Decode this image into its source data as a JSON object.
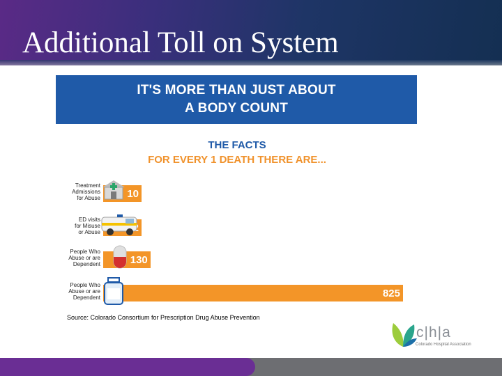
{
  "slide": {
    "title": "Additional Toll on System"
  },
  "infographic": {
    "banner_lines": [
      "IT'S MORE THAN JUST ABOUT",
      "A BODY COUNT"
    ],
    "facts_lines": [
      "THE FACTS",
      "FOR EVERY 1 DEATH THERE ARE..."
    ],
    "source": "Source: Colorado Consortium for Prescription Drug Abuse Prevention",
    "colors": {
      "banner": "#1f5aa8",
      "bar": "#f39528",
      "facts_accent": "#f0922c"
    }
  },
  "chart_data": {
    "type": "bar",
    "orientation": "horizontal",
    "categories": [
      [
        "Treatment",
        "Admissions",
        "for Abuse"
      ],
      [
        "ED visits",
        "for Misuse",
        "or Abuse"
      ],
      [
        "People Who",
        "Abuse or are",
        "Dependent"
      ],
      [
        "People Who",
        "Abuse or are",
        "Dependent"
      ]
    ],
    "values": [
      10,
      32,
      130,
      825
    ],
    "icons": [
      "hospital-icon",
      "ambulance-icon",
      "pill-capsule-icon",
      "medicine-bottle-icon"
    ],
    "xlim": [
      0,
      825
    ]
  },
  "logo": {
    "letters": "c|h|a",
    "tagline": "Colorado Hospital Association",
    "colors": [
      "#9ccc3c",
      "#2aa58c",
      "#1d6fa8"
    ]
  }
}
